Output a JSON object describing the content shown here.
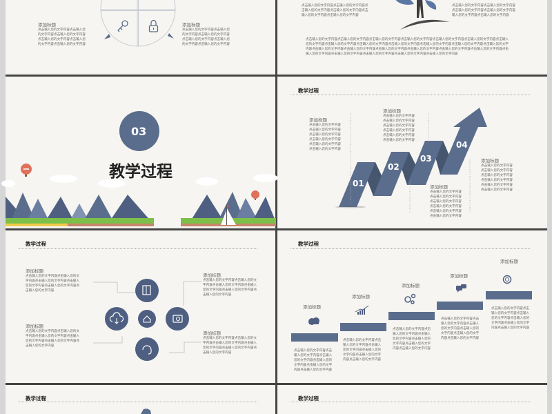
{
  "section": {
    "number": "03",
    "title": "教学过程"
  },
  "header": "教学过程",
  "colors": {
    "accent": "#5b6d8c",
    "accent_dark": "#46566f",
    "slide_bg": "#f6f5f1",
    "divider": "#444444"
  },
  "slide1": {
    "icons": [
      "key-icon",
      "lock-icon"
    ],
    "left": {
      "title": "添加标题",
      "lines": [
        "点击输入您的文字内容点击输入您",
        "的文字内容点击输入您的文字内容",
        "点击输入您的文字内容点击输入您",
        "的文字内容点击输入您的文字内容"
      ]
    },
    "right": {
      "title": "添加标题",
      "lines": [
        "点击输入您的文字内容点击输入您",
        "的文字内容点击输入您的文字内容",
        "点击输入您的文字内容点击输入您",
        "的文字内容点击输入您的文字内容"
      ]
    }
  },
  "slide2": {
    "left": {
      "lines": [
        "点击输入您的文字内容点击输入您的文字内容点",
        "击输入您的文字内容点击输入您的文字内容点击",
        "输入您的文字内容点击输入您的文字内容"
      ]
    },
    "right": {
      "lines": [
        "点击输入您的文字内容点击输入您的文字内容",
        "点击输入您的文字内容点击输入您的文字内容",
        "输入您的文字内容点击输入您的文字内容"
      ]
    },
    "paragraph": {
      "lines": [
        "点击输入您的文字内容点击输入您的文字内容点击输入您的文字内容点击输入您的文字内容点击输入您的文字内容点击输入您的文字内容点击输入",
        "您的文字内容点击输入您的文字内容点击输入您的文字内容点击输入您的文字内容点击输入您的文字内容点击输入您的文字内容点击输入您的文字",
        "内容点击输入您的文字内容点击输入您的文字内容点击输入您的文字内容点击输入您的文字内容点击输入您的文字内容点击输入您的文字内容点击",
        "输入您的文字内容点击输入您的文字内容点击输入您的文字内容点击输入您的文字内容点击输入您的文字内容"
      ]
    }
  },
  "arrow_slide": {
    "steps": [
      "01",
      "02",
      "03",
      "04"
    ],
    "blocks": [
      {
        "title": "添加标题",
        "lines": [
          "点击输入您的文字内容",
          "点击输入您的文字内容",
          "点击输入您的文字内容",
          "点击输入您的文字内容",
          "点击输入您的文字内容",
          "点击输入您的文字内容"
        ]
      },
      {
        "title": "添加标题",
        "lines": [
          "点击输入您的文字内容",
          "点击输入您的文字内容",
          "点击输入您的文字内容",
          "点击输入您的文字内容",
          "点击输入您的文字内容",
          "点击输入您的文字内容"
        ]
      },
      {
        "title": "添加标题",
        "lines": [
          "点击输入您的文字内容",
          "点击输入您的文字内容",
          "点击输入您的文字内容",
          "点击输入您的文字内容",
          "点击输入您的文字内容",
          "点击输入您的文字内容"
        ]
      },
      {
        "title": "添加标题",
        "lines": [
          "点击输入您的文字内容",
          "点击输入您的文字内容",
          "点击输入您的文字内容",
          "点击输入您的文字内容",
          "点击输入您的文字内容",
          "点击输入您的文字内容"
        ]
      }
    ]
  },
  "circle_slide": {
    "icons": [
      "film-icon",
      "cloud-download-icon",
      "home-icon",
      "camera-icon",
      "headset-icon"
    ],
    "blocks": [
      {
        "title": "添加标题",
        "lines": [
          "点击输入您的文字内容点击输入您的文",
          "字内容点击输入您的文字内容点击输入",
          "您的文字内容点击输入您的文字内容点",
          "击输入您的文字内容"
        ]
      },
      {
        "title": "添加标题",
        "lines": [
          "点击输入您的文字内容点击输入您的文",
          "字内容点击输入您的文字内容点击输入",
          "您的文字内容点击输入您的文字内容点",
          "击输入您的文字内容"
        ]
      },
      {
        "title": "添加标题",
        "lines": [
          "点击输入您的文字内容点击输入您的文",
          "字内容点击输入您的文字内容点击输入",
          "您的文字内容点击输入您的文字内容点",
          "击输入您的文字内容"
        ]
      },
      {
        "title": "添加标题",
        "lines": [
          "点击输入您的文字内容点击输入您的文",
          "字内容点击输入您的文字内容点击输入",
          "您的文字内容点击输入您的文字内容点",
          "击输入您的文字内容"
        ]
      }
    ]
  },
  "steps_slide": {
    "icons": [
      "cloud-transfer-icon",
      "bar-chart-icon",
      "gears-icon",
      "chat-icon",
      "lifebuoy-icon"
    ],
    "blocks": [
      {
        "title": "添加标题",
        "lines": [
          "点击输入您的文字内容点击",
          "输入您的文字内容点击输入",
          "您的文字内容点击输入您的",
          "文字内容点击输入您的文字",
          "内容点击输入您的文字内容"
        ]
      },
      {
        "title": "添加标题",
        "lines": [
          "点击输入您的文字内容点击",
          "输入您的文字内容点击输入",
          "您的文字内容点击输入您的",
          "文字内容点击输入您的文字",
          "内容点击输入您的文字内容"
        ]
      },
      {
        "title": "添加标题",
        "lines": [
          "点击输入您的文字内容点击",
          "输入您的文字内容点击输入",
          "您的文字内容点击输入您的",
          "文字内容点击输入您的文字",
          "内容点击输入您的文字内容"
        ]
      },
      {
        "title": "添加标题",
        "lines": [
          "点击输入您的文字内容点击",
          "输入您的文字内容点击输入",
          "您的文字内容点击输入您的",
          "文字内容点击输入您的文字",
          "内容点击输入您的文字内容"
        ]
      },
      {
        "title": "添加标题",
        "lines": [
          "点击输入您的文字内容点击",
          "输入您的文字内容点击输入",
          "您的文字内容点击输入您的",
          "文字内容点击输入您的文字",
          "内容点击输入您的文字内容"
        ]
      }
    ]
  }
}
